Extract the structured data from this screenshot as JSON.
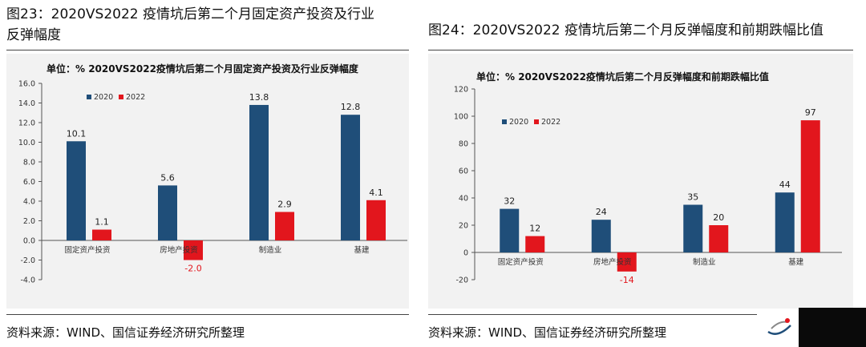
{
  "left": {
    "figure_title_line1": "图23：2020VS2022 疫情坑后第二个月固定资产投资及行业",
    "figure_title_line2": "反弹幅度",
    "plot_title": "单位：%  2020VS2022疫情坑后第二个月固定资产投资及行业反弹幅度",
    "source": "资料来源：WIND、国信证券经济研究所整理"
  },
  "right": {
    "figure_title_line1": "图24：2020VS2022 疫情坑后第二个月反弹幅度和前期跌幅比值",
    "plot_title": "单位：%  2020VS2022疫情坑后第二个月反弹幅度和前期跌幅比值",
    "source": "资料来源：WIND、国信证券经济研究所整理"
  },
  "colors": {
    "s2020": "#1f4e79",
    "s2022": "#e2161d",
    "axis": "#555555"
  },
  "chart_data": [
    {
      "type": "bar",
      "categories": [
        "固定资产投资",
        "房地产投资",
        "制造业",
        "基建"
      ],
      "series": [
        {
          "name": "2020",
          "values": [
            10.1,
            5.6,
            13.8,
            12.8
          ]
        },
        {
          "name": "2022",
          "values": [
            1.1,
            -2.0,
            2.9,
            4.1
          ]
        }
      ],
      "value_labels": {
        "2020": [
          "10.1",
          "5.6",
          "13.8",
          "12.8"
        ],
        "2022": [
          "1.1",
          "-2.0",
          "2.9",
          "4.1"
        ]
      },
      "ylim": [
        -4.0,
        16.0
      ],
      "yticks": [
        "-4.0",
        "-2.0",
        "0.0",
        "2.0",
        "4.0",
        "6.0",
        "8.0",
        "10.0",
        "12.0",
        "14.0",
        "16.0"
      ],
      "legend": "top-left",
      "grid": false
    },
    {
      "type": "bar",
      "categories": [
        "固定资产投资",
        "房地产投资",
        "制造业",
        "基建"
      ],
      "series": [
        {
          "name": "2020",
          "values": [
            32,
            24,
            35,
            44
          ]
        },
        {
          "name": "2022",
          "values": [
            12,
            -14,
            20,
            97
          ]
        }
      ],
      "value_labels": {
        "2020": [
          "32",
          "24",
          "35",
          "44"
        ],
        "2022": [
          "12",
          "-14",
          "20",
          "97"
        ]
      },
      "ylim": [
        -20,
        120
      ],
      "yticks": [
        "-20",
        "0",
        "20",
        "40",
        "60",
        "80",
        "100",
        "120"
      ],
      "legend": "top-left",
      "grid": false
    }
  ]
}
